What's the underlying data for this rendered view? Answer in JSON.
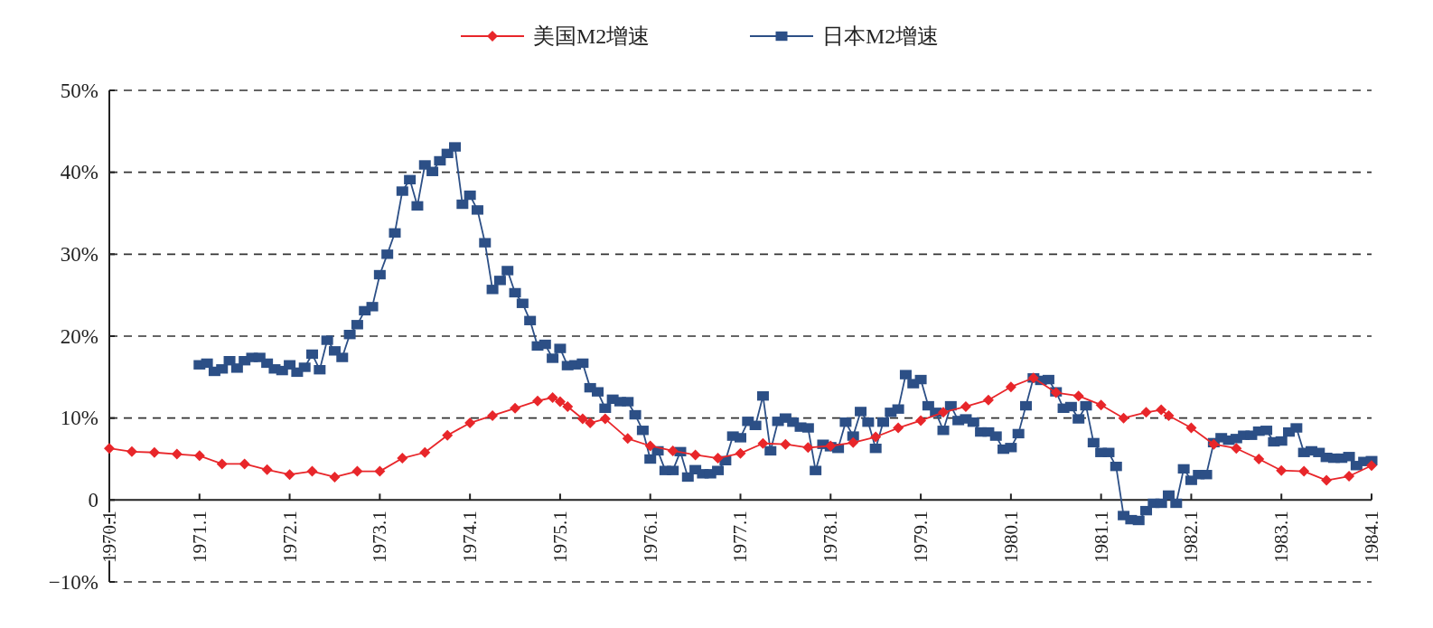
{
  "chart_data": {
    "type": "line",
    "legend": "top",
    "grid": "y",
    "line_style": "solid",
    "xlim": [
      "1970-01",
      "1984-01"
    ],
    "xticks": [
      {
        "value": "1970-01",
        "label": "1970.1"
      },
      {
        "value": "1971-01",
        "label": "1971.1"
      },
      {
        "value": "1972-01",
        "label": "1972.1"
      },
      {
        "value": "1973-01",
        "label": "1973.1"
      },
      {
        "value": "1974-01",
        "label": "1974.1"
      },
      {
        "value": "1975-01",
        "label": "1975.1"
      },
      {
        "value": "1976-01",
        "label": "1976.1"
      },
      {
        "value": "1977-01",
        "label": "1977.1"
      },
      {
        "value": "1978-01",
        "label": "1978.1"
      },
      {
        "value": "1979-01",
        "label": "1979.1"
      },
      {
        "value": "1980-01",
        "label": "1980.1"
      },
      {
        "value": "1981-01",
        "label": "1981.1"
      },
      {
        "value": "1982-01",
        "label": "1982.1"
      },
      {
        "value": "1983-01",
        "label": "1983.1"
      },
      {
        "value": "1984-01",
        "label": "1984.1"
      }
    ],
    "ylim": [
      -10,
      50
    ],
    "yticks": [
      {
        "value": -10,
        "label": "−10%"
      },
      0,
      {
        "value": 10,
        "label": "10%"
      },
      {
        "value": 20,
        "label": "20%"
      },
      {
        "value": 30,
        "label": "30%"
      },
      {
        "value": 40,
        "label": "40%"
      },
      {
        "value": 50,
        "label": "50%"
      }
    ],
    "series": [
      {
        "name": "美国M2增速",
        "type": "line",
        "marker": "diamond",
        "color": "#e8262a",
        "x": [
          "1970-01",
          "1970-04",
          "1970-07",
          "1970-10",
          "1971-01",
          "1971-04",
          "1971-07",
          "1971-10",
          "1972-01",
          "1972-04",
          "1972-07",
          "1972-10",
          "1973-01",
          "1973-04",
          "1973-07",
          "1973-10",
          "1974-01",
          "1974-04",
          "1974-07",
          "1974-10",
          "1974-12",
          "1975-01",
          "1975-02",
          "1975-04",
          "1975-05",
          "1975-07",
          "1975-10",
          "1976-01",
          "1976-04",
          "1976-07",
          "1976-10",
          "1977-01",
          "1977-04",
          "1977-07",
          "1977-10",
          "1978-01",
          "1978-04",
          "1978-07",
          "1978-10",
          "1979-01",
          "1979-04",
          "1979-07",
          "1979-10",
          "1980-01",
          "1980-04",
          "1980-07",
          "1980-10",
          "1981-01",
          "1981-04",
          "1981-07",
          "1981-09",
          "1981-10",
          "1982-01",
          "1982-04",
          "1982-07",
          "1982-10",
          "1983-01",
          "1983-04",
          "1983-07",
          "1983-10",
          "1984-01"
        ],
        "values": [
          6.3,
          5.9,
          5.8,
          5.6,
          5.4,
          4.4,
          4.4,
          3.7,
          3.1,
          3.5,
          2.8,
          3.5,
          3.5,
          5.1,
          5.8,
          7.9,
          9.4,
          10.3,
          11.2,
          12.1,
          12.5,
          12.0,
          11.4,
          9.9,
          9.4,
          9.9,
          7.5,
          6.6,
          6.0,
          5.5,
          5.1,
          5.7,
          6.9,
          6.8,
          6.4,
          6.6,
          7.0,
          7.7,
          8.8,
          9.7,
          10.7,
          11.4,
          12.2,
          13.8,
          14.9,
          13.1,
          12.7,
          11.6,
          10.0,
          10.7,
          11.0,
          10.3,
          8.8,
          6.8,
          6.3,
          5.0,
          3.6,
          3.5,
          2.4,
          2.9,
          4.2
        ]
      },
      {
        "name": "日本M2增速",
        "type": "line",
        "marker": "square",
        "color": "#2c4f86",
        "x": [
          "1971-01",
          "1971-02",
          "1971-03",
          "1971-04",
          "1971-05",
          "1971-06",
          "1971-07",
          "1971-08",
          "1971-09",
          "1971-10",
          "1971-11",
          "1971-12",
          "1972-01",
          "1972-02",
          "1972-03",
          "1972-04",
          "1972-05",
          "1972-06",
          "1972-07",
          "1972-08",
          "1972-09",
          "1972-10",
          "1972-11",
          "1972-12",
          "1973-01",
          "1973-02",
          "1973-03",
          "1973-04",
          "1973-05",
          "1973-06",
          "1973-07",
          "1973-08",
          "1973-09",
          "1973-10",
          "1973-11",
          "1973-12",
          "1974-01",
          "1974-02",
          "1974-03",
          "1974-04",
          "1974-05",
          "1974-06",
          "1974-07",
          "1974-08",
          "1974-09",
          "1974-10",
          "1974-11",
          "1974-12",
          "1975-01",
          "1975-02",
          "1975-03",
          "1975-04",
          "1975-05",
          "1975-06",
          "1975-07",
          "1975-08",
          "1975-09",
          "1975-10",
          "1975-11",
          "1975-12",
          "1976-01",
          "1976-02",
          "1976-03",
          "1976-04",
          "1976-05",
          "1976-06",
          "1976-07",
          "1976-08",
          "1976-09",
          "1976-10",
          "1976-11",
          "1976-12",
          "1977-01",
          "1977-02",
          "1977-03",
          "1977-04",
          "1977-05",
          "1977-06",
          "1977-07",
          "1977-08",
          "1977-09",
          "1977-10",
          "1977-11",
          "1977-12",
          "1978-01",
          "1978-02",
          "1978-03",
          "1978-04",
          "1978-05",
          "1978-06",
          "1978-07",
          "1978-08",
          "1978-09",
          "1978-10",
          "1978-11",
          "1978-12",
          "1979-01",
          "1979-02",
          "1979-03",
          "1979-04",
          "1979-05",
          "1979-06",
          "1979-07",
          "1979-08",
          "1979-09",
          "1979-10",
          "1979-11",
          "1979-12",
          "1980-01",
          "1980-02",
          "1980-03",
          "1980-04",
          "1980-05",
          "1980-06",
          "1980-07",
          "1980-08",
          "1980-09",
          "1980-10",
          "1980-11",
          "1980-12",
          "1981-01",
          "1981-02",
          "1981-03",
          "1981-04",
          "1981-05",
          "1981-06",
          "1981-07",
          "1981-08",
          "1981-09",
          "1981-10",
          "1981-11",
          "1981-12",
          "1982-01",
          "1982-02",
          "1982-03",
          "1982-04",
          "1982-05",
          "1982-06",
          "1982-07",
          "1982-08",
          "1982-09",
          "1982-10",
          "1982-11",
          "1982-12",
          "1983-01",
          "1983-02",
          "1983-03",
          "1983-04",
          "1983-05",
          "1983-06",
          "1983-07",
          "1983-08",
          "1983-09",
          "1983-10",
          "1983-11",
          "1983-12",
          "1984-01"
        ],
        "values": [
          16.5,
          16.7,
          15.7,
          16.0,
          17.0,
          16.1,
          17.0,
          17.4,
          17.4,
          16.7,
          16.0,
          15.8,
          16.5,
          15.6,
          16.2,
          17.8,
          15.9,
          19.5,
          18.2,
          17.4,
          20.2,
          21.4,
          23.1,
          23.6,
          27.5,
          30.0,
          32.6,
          37.7,
          39.1,
          35.9,
          40.9,
          40.1,
          41.4,
          42.3,
          43.1,
          36.1,
          37.2,
          35.4,
          31.4,
          25.7,
          26.8,
          28.0,
          25.3,
          24.0,
          21.9,
          18.8,
          19.0,
          17.3,
          18.5,
          16.4,
          16.5,
          16.7,
          13.7,
          13.2,
          11.2,
          12.3,
          12.0,
          12.0,
          10.4,
          8.5,
          5.0,
          6.0,
          3.6,
          3.6,
          5.9,
          2.8,
          3.7,
          3.2,
          3.2,
          3.6,
          4.8,
          7.8,
          7.6,
          9.6,
          9.1,
          12.7,
          6.0,
          9.6,
          10.0,
          9.5,
          8.9,
          8.8,
          3.6,
          6.8,
          6.5,
          6.3,
          9.5,
          7.8,
          10.8,
          9.5,
          6.3,
          9.5,
          10.7,
          11.1,
          15.3,
          14.2,
          14.7,
          11.5,
          10.7,
          8.5,
          11.5,
          9.7,
          9.9,
          9.5,
          8.3,
          8.3,
          7.8,
          6.2,
          6.4,
          8.1,
          11.5,
          14.9,
          14.6,
          14.7,
          13.2,
          11.2,
          11.4,
          9.9,
          11.5,
          7.0,
          5.8,
          5.8,
          4.1,
          -1.9,
          -2.4,
          -2.5,
          -1.3,
          -0.4,
          -0.4,
          0.6,
          -0.4,
          3.8,
          2.4,
          3.1,
          3.1,
          7.0,
          7.6,
          7.3,
          7.5,
          7.9,
          7.9,
          8.4,
          8.5,
          7.1,
          7.2,
          8.3,
          8.8,
          5.8,
          6.0,
          5.8,
          5.2,
          5.1,
          5.1,
          5.3,
          4.2,
          4.7,
          4.8
        ]
      }
    ]
  }
}
